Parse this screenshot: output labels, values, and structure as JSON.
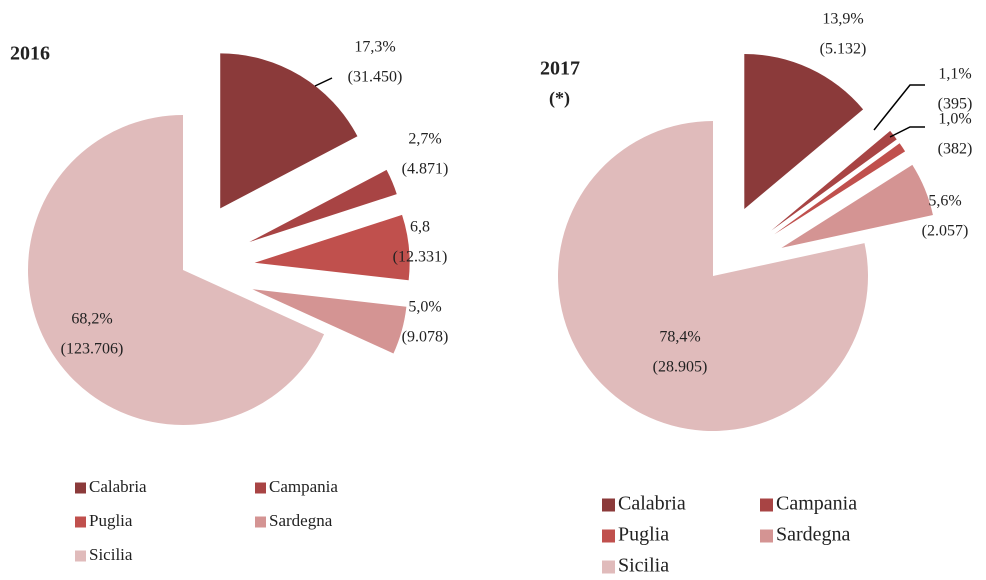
{
  "chart_data": [
    {
      "type": "pie",
      "title": "2016",
      "categories": [
        "Calabria",
        "Campania",
        "Puglia",
        "Sardegna",
        "Sicilia"
      ],
      "values": [
        17.3,
        2.7,
        6.8,
        5.0,
        68.2
      ],
      "value_labels": [
        "17,3%",
        "2,7%",
        "6,8",
        "5,0%",
        "68,2%"
      ],
      "counts": [
        31450,
        4871,
        12331,
        9078,
        123706
      ],
      "count_labels": [
        "(31.450)",
        "(4.871)",
        "(12.331)",
        "(9.078)",
        "(123.706)"
      ],
      "colors": [
        "#8b3a3a",
        "#a84444",
        "#c0504d",
        "#d49493",
        "#e0bbbb"
      ]
    },
    {
      "type": "pie",
      "title": "2017",
      "subtitle": "(*)",
      "categories": [
        "Calabria",
        "Campania",
        "Puglia",
        "Sardegna",
        "Sicilia"
      ],
      "values": [
        13.9,
        1.1,
        1.0,
        5.6,
        78.4
      ],
      "value_labels": [
        "13,9%",
        "1,1%",
        "1,0%",
        "5,6%",
        "78,4%"
      ],
      "counts": [
        5132,
        395,
        382,
        2057,
        28905
      ],
      "count_labels": [
        "(5.132)",
        "(395)",
        "(382)",
        "(2.057)",
        "(28.905)"
      ],
      "colors": [
        "#8b3a3a",
        "#a84444",
        "#c0504d",
        "#d49493",
        "#e0bbbb"
      ]
    }
  ]
}
